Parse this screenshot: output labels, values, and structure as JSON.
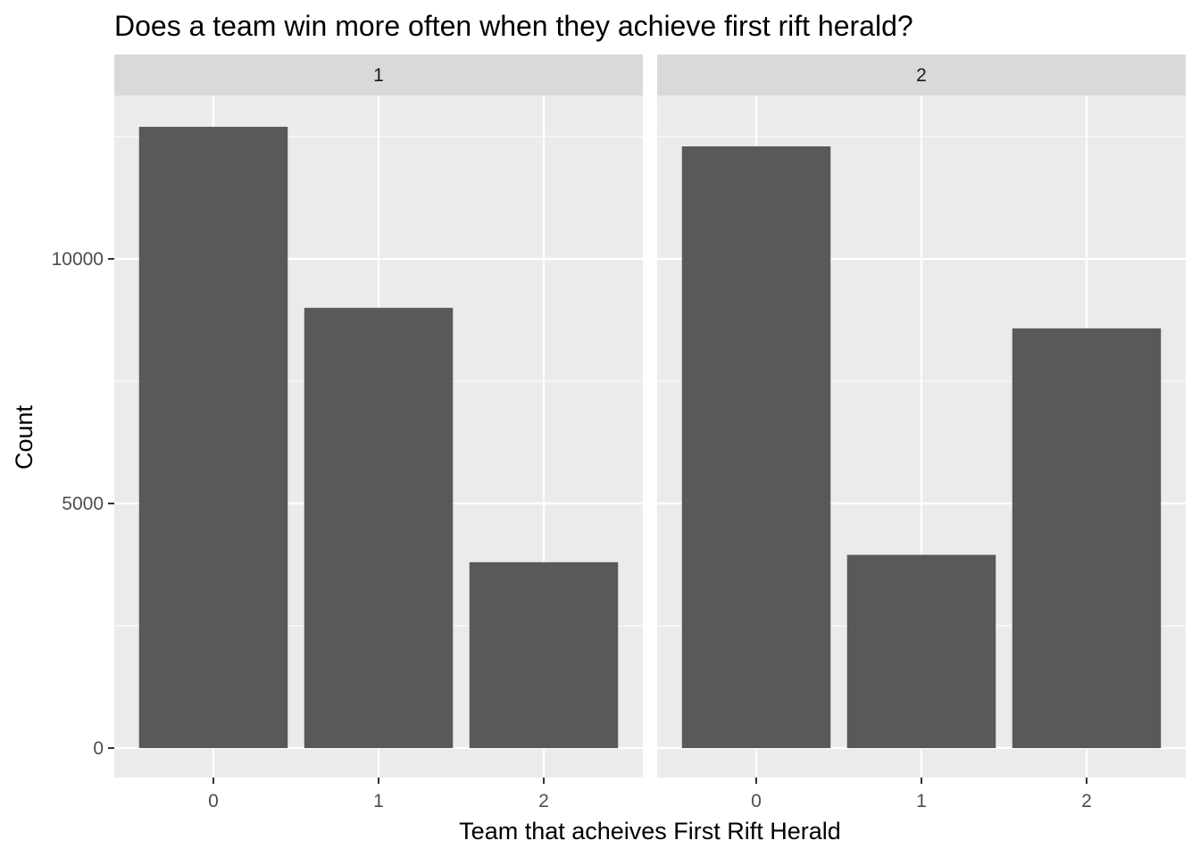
{
  "chart_data": {
    "type": "bar",
    "title": "Does a team win more often when they achieve first rift herald?",
    "xlabel": "Team that acheives First Rift Herald",
    "ylabel": "Count",
    "ylim": [
      0,
      13000
    ],
    "yticks": [
      0,
      5000,
      10000
    ],
    "ytick_labels": [
      "0",
      "5000",
      "10000"
    ],
    "categories": [
      "0",
      "1",
      "2"
    ],
    "grid": true,
    "colors": {
      "bar": "#595959",
      "panel": "#ebebeb",
      "strip": "#d9d9d9",
      "grid": "#ffffff"
    },
    "facets": [
      {
        "label": "1",
        "values": [
          12700,
          9000,
          3800
        ]
      },
      {
        "label": "2",
        "values": [
          12300,
          3950,
          8580
        ]
      }
    ]
  }
}
